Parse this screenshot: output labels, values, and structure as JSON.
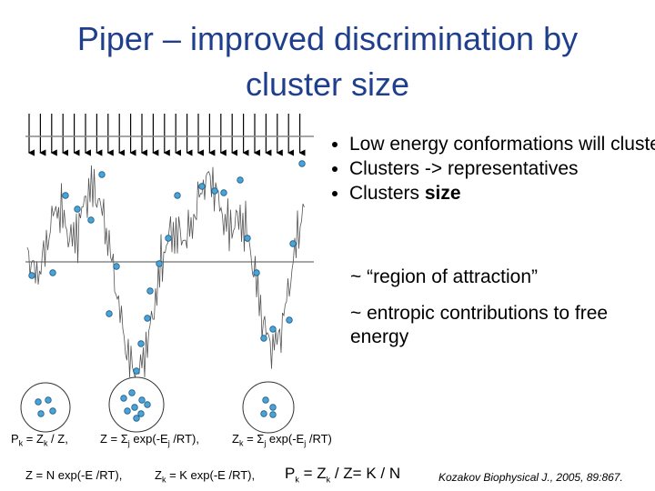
{
  "title": "Piper – improved discrimination by cluster size",
  "bullets": [
    {
      "parts": [
        {
          "text": "Low energy conformations will cluster"
        }
      ]
    },
    {
      "parts": [
        {
          "text": "Clusters -> representatives"
        }
      ]
    },
    {
      "parts": [
        {
          "text": "Clusters "
        },
        {
          "text": "size",
          "bold": true
        }
      ]
    }
  ],
  "sub_lines": [
    "~ “region of attraction”",
    "~ entropic contributions to free energy"
  ],
  "formulas": [
    [
      {
        "text": "P",
        "sub": "k"
      },
      {
        "text": " = Z",
        "sub": "k"
      },
      {
        "text": " / Z,"
      }
    ],
    [
      {
        "text": "Z = Σ",
        "sub": "j"
      },
      {
        "text": " exp(-E",
        "sub": "j"
      },
      {
        "text": " /RT),"
      }
    ],
    [
      {
        "text": "Z",
        "sub": "k"
      },
      {
        "text": " = Σ",
        "sub": "j"
      },
      {
        "text": " exp(-E",
        "sub": "j"
      },
      {
        "text": " /RT)"
      }
    ],
    [
      {
        "text": "Z = N exp(-E /RT),"
      }
    ],
    [
      {
        "text": "Z",
        "sub": "k"
      },
      {
        "text": " =  K exp(-E /RT),"
      }
    ],
    [
      {
        "text": "P",
        "sub": "k"
      },
      {
        "text": " = Z",
        "sub": "k"
      },
      {
        "text": " / Z= K / N"
      }
    ]
  ],
  "citation": "Kozakov Biophysical J., 2005, 89:867."
}
